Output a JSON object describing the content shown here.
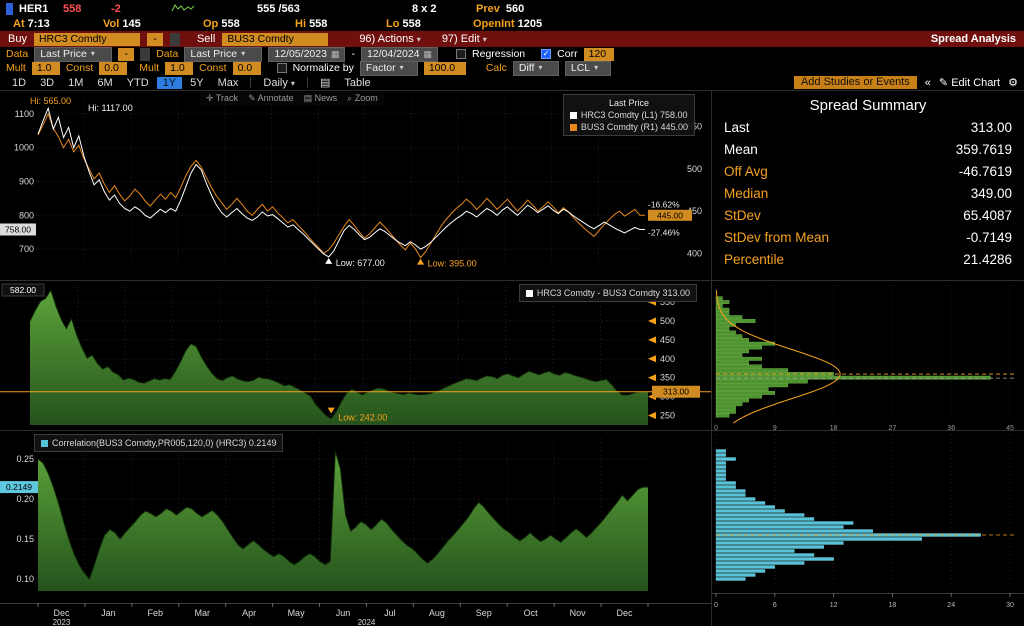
{
  "quote_bar": {
    "ticker": "HER1",
    "last": "558",
    "change": "-2",
    "bid_ask": "555 /563",
    "size": "8 x 2",
    "prev_label": "Prev",
    "prev_value": "560",
    "at_label": "At",
    "at_value": "7:13",
    "vol_label": "Vol",
    "vol_value": "145",
    "op_label": "Op",
    "op_value": "558",
    "hi_label": "Hi",
    "hi_value": "558",
    "lo_label": "Lo",
    "lo_value": "558",
    "openint_label": "OpenInt",
    "openint_value": "1205"
  },
  "command_bar": {
    "buy_label": "Buy",
    "buy_security": "HRC3 Comdty",
    "minus": "-",
    "sell_label": "Sell",
    "sell_security": "BUS3 Comdty",
    "actions": "96) Actions",
    "edit": "97) Edit",
    "title": "Spread Analysis"
  },
  "settings": {
    "data_label": "Data",
    "data_source_1": "Last Price",
    "data_source_2": "Last Price",
    "minus": "-",
    "date_from": "12/05/2023",
    "date_sep": "-",
    "date_to": "12/04/2024",
    "regression_label": "Regression",
    "corr_label": "Corr",
    "corr_value": "120",
    "mult_label": "Mult",
    "mult1": "1.0",
    "const_label": "Const",
    "const1": "0.0",
    "mult2": "1.0",
    "const2": "0.0",
    "normalize_label": "Normalize by",
    "factor_label": "Factor",
    "factor_value": "100.0",
    "calc_label": "Calc",
    "calc_value": "Diff",
    "lcl_value": "LCL",
    "check_glyph": "✓"
  },
  "toolbar": {
    "periods": [
      "1D",
      "3D",
      "1M",
      "6M",
      "YTD",
      "1Y",
      "5Y",
      "Max"
    ],
    "active_period": "1Y",
    "frequency": "Daily",
    "table_label": "Table",
    "add_studies": "Add Studies or Events",
    "collapse": "«",
    "edit_chart": "Edit Chart",
    "track": "Track",
    "annotate": "Annotate",
    "news": "News",
    "zoom": "Zoom"
  },
  "summary": {
    "title": "Spread Summary",
    "rows": [
      {
        "label": "Last",
        "value": "313.00",
        "c": "w"
      },
      {
        "label": "Mean",
        "value": "359.7619",
        "c": "w"
      },
      {
        "label": "Off Avg",
        "value": "-46.7619",
        "c": "o"
      },
      {
        "label": "Median",
        "value": "349.00",
        "c": "o"
      },
      {
        "label": "StDev",
        "value": "65.4087",
        "c": "o"
      },
      {
        "label": "StDev from Mean",
        "value": "-0.7149",
        "c": "o"
      },
      {
        "label": "Percentile",
        "value": "21.4286",
        "c": "o"
      }
    ]
  },
  "months": [
    "Dec",
    "Jan",
    "Feb",
    "Mar",
    "Apr",
    "May",
    "Jun",
    "Jul",
    "Aug",
    "Sep",
    "Oct",
    "Nov",
    "Dec"
  ],
  "years": {
    "start": "2023",
    "mid": "2024"
  },
  "colors": {
    "accent_orange": "#f6a21d",
    "amber_field": "#d08c20",
    "command_bar_red": "#70100e",
    "negative_red": "#ff5252",
    "active_tab_blue": "#2e7de0",
    "spread_green": "#4f9331",
    "correlation_cyan": "#55c3da",
    "series_white": "#ffffff",
    "series_orange": "#e8881c"
  },
  "chart_data": [
    {
      "id": "price",
      "type": "line",
      "title": "Last Price",
      "left_axis": {
        "min": 650,
        "max": 1150,
        "ticks": [
          1100,
          1000,
          900,
          800,
          700
        ]
      },
      "right_axis": {
        "min": 385,
        "max": 585,
        "ticks": [
          550,
          500,
          450,
          400
        ]
      },
      "annotations": {
        "hi_left": "Hi: 1117.00",
        "hi_right": "Hi: 565.00",
        "low_left": "Low: 677.00",
        "low_right": "Low: 395.00",
        "pct_top": "-16.62%",
        "pct_bottom": "-27.46%",
        "left_badge": "758.00",
        "right_badge": "445.00"
      },
      "series": [
        {
          "name": "HRC3 Comdty",
          "axis": "(L1)",
          "last": "758.00",
          "color": "#ffffff",
          "values": [
            1040,
            1080,
            1117,
            1055,
            1090,
            1030,
            1060,
            1000,
            1035,
            975,
            930,
            890,
            905,
            870,
            845,
            860,
            835,
            820,
            812,
            825,
            815,
            800,
            792,
            805,
            818,
            808,
            820,
            812,
            845,
            885,
            925,
            950,
            935,
            895,
            860,
            830,
            808,
            795,
            808,
            820,
            805,
            792,
            785,
            795,
            810,
            798,
            802,
            790,
            778,
            765,
            772,
            758,
            745,
            730,
            715,
            700,
            686,
            677,
            695,
            725,
            755,
            770,
            758,
            742,
            728,
            735,
            748,
            760,
            752,
            740,
            728,
            718,
            710,
            722,
            712,
            700,
            708,
            720,
            735,
            750,
            765,
            778,
            790,
            800,
            812,
            805,
            795,
            808,
            820,
            812,
            800,
            815,
            825,
            812,
            800,
            815,
            830,
            820,
            808,
            818,
            828,
            815,
            805,
            818,
            810,
            798,
            788,
            778,
            768,
            760,
            770,
            780,
            772,
            762,
            755,
            748,
            756,
            764,
            758,
            758
          ]
        },
        {
          "name": "BUS3 Comdty",
          "axis": "(R1)",
          "last": "445.00",
          "color": "#e8881c",
          "values": [
            540,
            552,
            565,
            548,
            538,
            525,
            535,
            520,
            528,
            512,
            500,
            488,
            495,
            482,
            472,
            480,
            470,
            462,
            468,
            476,
            470,
            462,
            456,
            463,
            470,
            464,
            472,
            466,
            478,
            492,
            503,
            510,
            502,
            490,
            478,
            468,
            460,
            452,
            458,
            465,
            458,
            450,
            445,
            452,
            458,
            450,
            455,
            448,
            442,
            436,
            440,
            433,
            427,
            420,
            413,
            407,
            400,
            404,
            412,
            422,
            432,
            440,
            433,
            425,
            418,
            423,
            430,
            437,
            431,
            424,
            417,
            410,
            404,
            412,
            405,
            395,
            402,
            412,
            422,
            432,
            440,
            447,
            453,
            458,
            464,
            459,
            452,
            458,
            465,
            459,
            452,
            458,
            464,
            457,
            450,
            456,
            463,
            457,
            450,
            455,
            461,
            455,
            448,
            454,
            449,
            442,
            436,
            430,
            425,
            420,
            427,
            434,
            440,
            446,
            450,
            444,
            448,
            452,
            445,
            445
          ]
        }
      ]
    },
    {
      "id": "spread",
      "type": "area",
      "legend": "HRC3 Comdty - BUS3 Comdty",
      "last": "313.00",
      "hi": "582.00",
      "low_label": "Low: 242.00",
      "axis": {
        "min": 225,
        "max": 590,
        "ticks": [
          550,
          500,
          450,
          400,
          350,
          300,
          250
        ]
      },
      "values": [
        500,
        528,
        552,
        560,
        582,
        540,
        505,
        480,
        507,
        463,
        430,
        402,
        410,
        388,
        373,
        380,
        365,
        358,
        344,
        349,
        345,
        338,
        336,
        342,
        348,
        344,
        348,
        346,
        367,
        393,
        422,
        440,
        433,
        405,
        382,
        362,
        348,
        343,
        350,
        355,
        347,
        342,
        340,
        343,
        352,
        348,
        347,
        342,
        336,
        329,
        332,
        325,
        318,
        310,
        302,
        280,
        265,
        250,
        242,
        262,
        288,
        310,
        320,
        312,
        305,
        312,
        318,
        323,
        321,
        316,
        311,
        308,
        306,
        310,
        307,
        305,
        306,
        308,
        313,
        318,
        325,
        331,
        337,
        342,
        348,
        346,
        343,
        350,
        355,
        353,
        348,
        357,
        361,
        355,
        350,
        359,
        367,
        363,
        358,
        363,
        367,
        360,
        357,
        364,
        361,
        356,
        352,
        348,
        343,
        340,
        343,
        346,
        332,
        316,
        305,
        304,
        308,
        312,
        313,
        313
      ]
    },
    {
      "id": "spread_hist",
      "type": "histogram-h",
      "color": "#4f9331",
      "x_ticks": [
        0,
        9,
        18,
        27,
        36,
        45
      ],
      "curve": {
        "mean": 359.7619,
        "sd": 65.4087,
        "peak": 19,
        "median": 349.0
      },
      "levels": [
        250,
        260,
        270,
        280,
        290,
        300,
        310,
        320,
        330,
        340,
        350,
        360,
        370,
        380,
        390,
        400,
        410,
        420,
        430,
        440,
        450,
        460,
        470,
        480,
        490,
        500,
        510,
        520,
        530,
        540,
        550,
        560
      ],
      "counts": [
        2,
        3,
        3,
        4,
        5,
        7,
        9,
        8,
        11,
        14,
        42,
        18,
        11,
        7,
        5,
        7,
        4,
        5,
        7,
        9,
        5,
        4,
        3,
        2,
        3,
        6,
        4,
        2,
        2,
        1,
        2,
        1
      ]
    },
    {
      "id": "correlation",
      "type": "area",
      "legend": "Correlation(BUS3 Comdty,PR005,120,0) (HRC3)",
      "last": "0.2149",
      "axis": {
        "min": 0.085,
        "max": 0.275,
        "ticks": [
          0.25,
          0.2,
          0.15,
          0.1
        ]
      },
      "values": [
        0.25,
        0.245,
        0.232,
        0.215,
        0.195,
        0.172,
        0.15,
        0.132,
        0.118,
        0.108,
        0.1,
        0.118,
        0.138,
        0.155,
        0.162,
        0.158,
        0.15,
        0.158,
        0.165,
        0.172,
        0.18,
        0.185,
        0.182,
        0.178,
        0.182,
        0.188,
        0.185,
        0.18,
        0.185,
        0.19,
        0.188,
        0.182,
        0.178,
        0.182,
        0.186,
        0.18,
        0.172,
        0.162,
        0.152,
        0.143,
        0.138,
        0.143,
        0.148,
        0.143,
        0.137,
        0.132,
        0.128,
        0.132,
        0.128,
        0.122,
        0.118,
        0.122,
        0.128,
        0.132,
        0.128,
        0.122,
        0.118,
        0.122,
        0.26,
        0.238,
        0.18,
        0.16,
        0.165,
        0.172,
        0.168,
        0.162,
        0.168,
        0.175,
        0.17,
        0.162,
        0.155,
        0.148,
        0.142,
        0.138,
        0.132,
        0.125,
        0.12,
        0.125,
        0.132,
        0.14,
        0.148,
        0.155,
        0.162,
        0.17,
        0.178,
        0.188,
        0.196,
        0.19,
        0.182,
        0.175,
        0.168,
        0.162,
        0.158,
        0.152,
        0.148,
        0.152,
        0.158,
        0.152,
        0.147,
        0.15,
        0.155,
        0.15,
        0.146,
        0.152,
        0.158,
        0.163,
        0.158,
        0.152,
        0.158,
        0.165,
        0.172,
        0.18,
        0.188,
        0.196,
        0.205,
        0.198,
        0.205,
        0.212,
        0.215,
        0.2149
      ]
    },
    {
      "id": "corr_hist",
      "type": "histogram-h",
      "color": "#55c3da",
      "x_ticks": [
        0,
        6,
        12,
        18,
        24,
        30
      ],
      "mean_line": 0.155,
      "levels": [
        0.1,
        0.105,
        0.11,
        0.115,
        0.12,
        0.125,
        0.13,
        0.135,
        0.14,
        0.145,
        0.15,
        0.155,
        0.16,
        0.165,
        0.17,
        0.175,
        0.18,
        0.185,
        0.19,
        0.195,
        0.2,
        0.205,
        0.21,
        0.215,
        0.22,
        0.225,
        0.23,
        0.235,
        0.24,
        0.245,
        0.25,
        0.255,
        0.26
      ],
      "counts": [
        3,
        4,
        5,
        6,
        9,
        12,
        10,
        8,
        11,
        13,
        21,
        27,
        16,
        13,
        14,
        10,
        9,
        7,
        6,
        5,
        4,
        3,
        3,
        2,
        2,
        1,
        1,
        1,
        1,
        1,
        2,
        1,
        1
      ]
    }
  ]
}
